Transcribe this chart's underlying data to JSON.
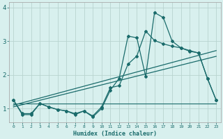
{
  "xlabel": "Humidex (Indice chaleur)",
  "bg_color": "#d8f0ee",
  "line_color": "#1a6b6b",
  "grid_color": "#b8d4d0",
  "xlim": [
    -0.5,
    23.5
  ],
  "ylim": [
    0.6,
    4.15
  ],
  "series1_x": [
    0,
    1,
    2,
    3,
    4,
    5,
    6,
    7,
    8,
    9,
    10,
    11,
    12,
    13,
    14,
    15,
    16,
    17,
    18,
    19,
    20,
    21,
    22,
    23
  ],
  "series1_y": [
    1.25,
    0.82,
    0.82,
    1.15,
    1.05,
    0.97,
    0.93,
    0.82,
    0.93,
    0.75,
    1.0,
    1.55,
    1.9,
    3.15,
    3.1,
    1.95,
    3.85,
    3.7,
    3.0,
    2.8,
    2.7,
    2.65,
    1.9,
    1.25
  ],
  "series2_x": [
    0,
    1,
    2,
    3,
    4,
    5,
    6,
    7,
    8,
    9,
    10,
    11,
    12,
    13,
    14,
    15,
    16,
    17,
    18,
    19,
    20,
    21,
    22,
    23
  ],
  "series2_y": [
    1.25,
    0.85,
    0.85,
    1.15,
    1.05,
    0.97,
    0.93,
    0.85,
    0.93,
    0.78,
    1.05,
    1.62,
    1.68,
    2.32,
    2.56,
    3.3,
    3.02,
    2.92,
    2.85,
    2.8,
    2.72,
    2.65,
    1.9,
    1.25
  ],
  "trend1_x": [
    0,
    23
  ],
  "trend1_y": [
    1.1,
    2.72
  ],
  "trend2_x": [
    0,
    23
  ],
  "trend2_y": [
    1.05,
    2.55
  ],
  "flat_x": [
    0,
    1,
    2,
    3,
    4,
    5,
    6,
    7,
    8,
    9,
    10,
    11,
    12,
    13,
    14,
    15,
    16,
    17,
    18,
    19,
    20,
    21,
    22,
    23
  ],
  "flat_y": [
    1.15,
    1.15,
    1.15,
    1.15,
    1.15,
    1.15,
    1.15,
    1.15,
    1.15,
    1.15,
    1.15,
    1.15,
    1.15,
    1.15,
    1.15,
    1.15,
    1.15,
    1.15,
    1.15,
    1.15,
    1.15,
    1.15,
    1.15,
    1.15
  ],
  "ytick_vals": [
    1,
    2,
    3,
    4
  ],
  "ytick_labels": [
    "1",
    "2",
    "3",
    "4"
  ]
}
